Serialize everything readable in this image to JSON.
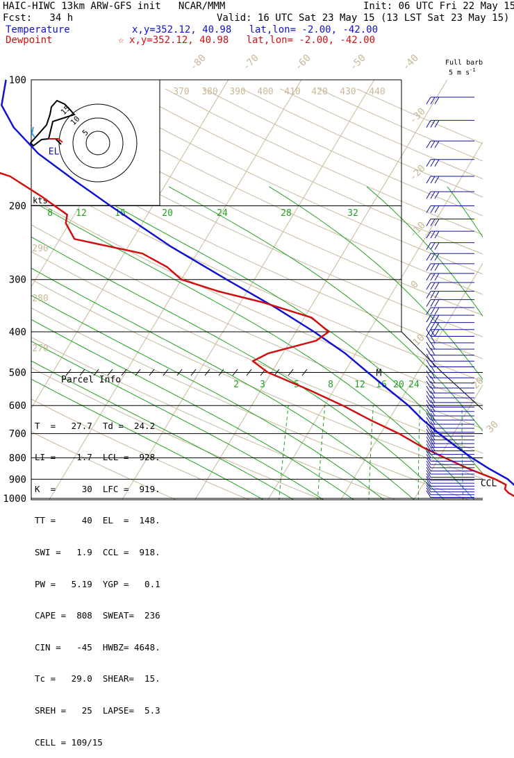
{
  "header": {
    "title": "HAIC-HIWC 13km ARW-GFS init   NCAR/MMM",
    "init": "Init: 06 UTC Fri 22 May 15",
    "fcst": "Fcst:   34 h",
    "valid": "Valid: 16 UTC Sat 23 May 15 (13 LST Sat 23 May 15)",
    "temp_label": "Temperature",
    "temp_loc": "x,y=352.12, 40.98   lat,lon= -2.00, -42.00",
    "dew_label": "Dewpoint",
    "dew_loc": "x,y=352.12, 40.98   lat,lon= -2.00, -42.00",
    "star": "☆",
    "barb_title_1": "Full barb",
    "barb_title_2": "5 m s",
    "barb_title_sup": "-1"
  },
  "colors": {
    "temperature": "#1010d0",
    "dewpoint": "#d01010",
    "isotherm": "#c8b898",
    "mixing_ratio": "#22a022",
    "wind": "#1010a0"
  },
  "chart_data": {
    "type": "skew-t",
    "y_axis": {
      "pressure_levels": [
        100,
        200,
        300,
        400,
        500,
        600,
        700,
        800,
        900,
        1000
      ],
      "log_scale": true,
      "unit": "hPa"
    },
    "isotherm_labels": [
      "-80",
      "-70",
      "-60",
      "-50",
      "-40",
      "-30",
      "-20",
      "-10",
      "0",
      "10",
      "20",
      "30",
      "40"
    ],
    "theta_labels": [
      "370",
      "380",
      "390",
      "400",
      "410",
      "420",
      "430",
      "440",
      "290",
      "280",
      "270"
    ],
    "mixing_ratio_upper": [
      "8",
      "12",
      "16",
      "20",
      "24",
      "28",
      "32"
    ],
    "mixing_ratio_lower": [
      "2",
      "3",
      "5",
      "8",
      "12",
      "16",
      "20",
      "24"
    ],
    "temperature": [
      {
        "p": 1000,
        "t": 27.7
      },
      {
        "p": 970,
        "t": 24.5
      },
      {
        "p": 950,
        "t": 23.4
      },
      {
        "p": 928,
        "t": 22.5
      },
      {
        "p": 900,
        "t": 21.2
      },
      {
        "p": 850,
        "t": 17.8
      },
      {
        "p": 800,
        "t": 14.5
      },
      {
        "p": 750,
        "t": 11.3
      },
      {
        "p": 700,
        "t": 8.0
      },
      {
        "p": 650,
        "t": 4.7
      },
      {
        "p": 600,
        "t": 1.5
      },
      {
        "p": 550,
        "t": -2.5
      },
      {
        "p": 500,
        "t": -6.8
      },
      {
        "p": 450,
        "t": -11.5
      },
      {
        "p": 400,
        "t": -17.5
      },
      {
        "p": 350,
        "t": -24.8
      },
      {
        "p": 300,
        "t": -33.8
      },
      {
        "p": 250,
        "t": -44.2
      },
      {
        "p": 200,
        "t": -55.8
      },
      {
        "p": 175,
        "t": -62.5
      },
      {
        "p": 150,
        "t": -70.0
      },
      {
        "p": 130,
        "t": -75.5
      },
      {
        "p": 115,
        "t": -79.0
      },
      {
        "p": 100,
        "t": -80.5
      }
    ],
    "dewpoint": [
      {
        "p": 1000,
        "t": 24.2
      },
      {
        "p": 970,
        "t": 22.4
      },
      {
        "p": 950,
        "t": 21.6
      },
      {
        "p": 928,
        "t": 21.4
      },
      {
        "p": 900,
        "t": 19.5
      },
      {
        "p": 850,
        "t": 15.0
      },
      {
        "p": 800,
        "t": 10.8
      },
      {
        "p": 750,
        "t": 6.5
      },
      {
        "p": 700,
        "t": 2.5
      },
      {
        "p": 650,
        "t": -2.5
      },
      {
        "p": 600,
        "t": -7.5
      },
      {
        "p": 550,
        "t": -13.5
      },
      {
        "p": 500,
        "t": -20.5
      },
      {
        "p": 470,
        "t": -23.5
      },
      {
        "p": 450,
        "t": -22.0
      },
      {
        "p": 420,
        "t": -16.5
      },
      {
        "p": 400,
        "t": -15.5
      },
      {
        "p": 370,
        "t": -19.0
      },
      {
        "p": 340,
        "t": -27.0
      },
      {
        "p": 320,
        "t": -34.0
      },
      {
        "p": 300,
        "t": -40.0
      },
      {
        "p": 280,
        "t": -43.0
      },
      {
        "p": 260,
        "t": -47.5
      },
      {
        "p": 240,
        "t": -58.0
      },
      {
        "p": 220,
        "t": -60.5
      },
      {
        "p": 210,
        "t": -61.0
      },
      {
        "p": 190,
        "t": -66.0
      },
      {
        "p": 170,
        "t": -72.0
      },
      {
        "p": 160,
        "t": -77.5
      },
      {
        "p": 150,
        "t": -78.0
      },
      {
        "p": 140,
        "t": -77.0
      },
      {
        "p": 130,
        "t": -78.0
      },
      {
        "p": 120,
        "t": -80.0
      },
      {
        "p": 110,
        "t": -82.0
      },
      {
        "p": 100,
        "t": -83.5
      }
    ],
    "profile_labels": [
      {
        "text": "EL",
        "p": 148
      },
      {
        "text": "M",
        "p": 500
      },
      {
        "text": "CCL",
        "p": 918
      },
      {
        "text": "LCL",
        "p": 928
      },
      {
        "text": "LFC",
        "p": 919
      }
    ],
    "hodograph": {
      "units": "kts",
      "ring_labels": [
        "5",
        "10",
        "15"
      ]
    },
    "wind_barbs_present": true
  },
  "parcel": {
    "title": "Parcel Info",
    "rows": [
      "T  =   27.7  Td =  24.2",
      "LI =   -1.7  LCL =  928.",
      "K  =     30  LFC =  919.",
      "TT =     40  EL  =  148.",
      "SWI =   1.9  CCL =  918.",
      "PW =   5.19  YGP =   0.1",
      "CAPE =  808  SWEAT=  236",
      "CIN =   -45  HWBZ= 4648.",
      "Tc =   29.0  SHEAR=  15.",
      "SREH =   25  LAPSE=  5.3",
      "CELL = 109/15"
    ]
  }
}
